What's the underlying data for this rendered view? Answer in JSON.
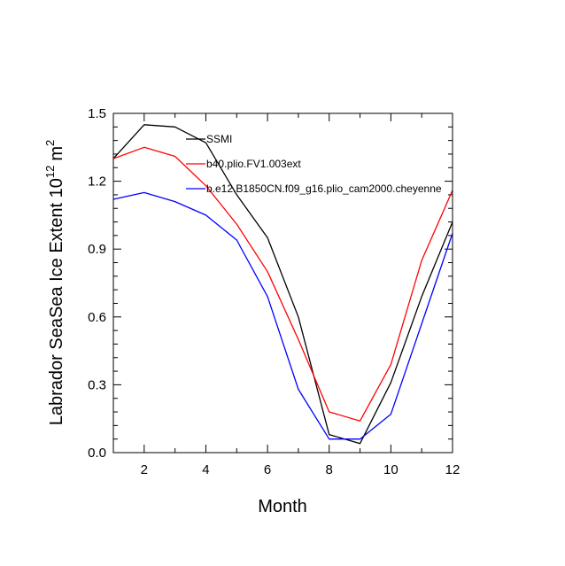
{
  "chart_data": {
    "type": "line",
    "title": "",
    "xlabel": "Month",
    "ylabel_main": "Labrador SeaSea Ice Extent 10",
    "ylabel_exp": "12",
    "ylabel_unit": "m",
    "ylabel_unit_exp": "2",
    "xlim": [
      1,
      12
    ],
    "ylim": [
      0.0,
      1.5
    ],
    "x_ticks": [
      2,
      4,
      6,
      8,
      10,
      12
    ],
    "x_tick_labels": [
      "2",
      "4",
      "6",
      "8",
      "10",
      "12"
    ],
    "y_ticks": [
      0.0,
      0.3,
      0.6,
      0.9,
      1.2,
      1.5
    ],
    "y_tick_labels": [
      "0.0",
      "0.3",
      "0.6",
      "0.9",
      "1.2",
      "1.5"
    ],
    "x": [
      1,
      2,
      3,
      4,
      5,
      6,
      7,
      8,
      9,
      10,
      11,
      12
    ],
    "legend_position": "top-right",
    "series": [
      {
        "name": "SSMI",
        "color": "#000000",
        "values": [
          1.3,
          1.45,
          1.44,
          1.37,
          1.14,
          0.95,
          0.6,
          0.08,
          0.04,
          0.31,
          0.69,
          1.02
        ]
      },
      {
        "name": "b40.plio.FV1.003ext",
        "color": "#ff0000",
        "values": [
          1.3,
          1.35,
          1.31,
          1.18,
          1.01,
          0.8,
          0.5,
          0.18,
          0.14,
          0.39,
          0.85,
          1.16
        ]
      },
      {
        "name": "b.e12.B1850CN.f09_g16.plio_cam2000.cheyenne",
        "color": "#0000ff",
        "values": [
          1.12,
          1.15,
          1.11,
          1.05,
          0.94,
          0.69,
          0.28,
          0.06,
          0.06,
          0.17,
          0.57,
          0.97
        ]
      }
    ]
  }
}
